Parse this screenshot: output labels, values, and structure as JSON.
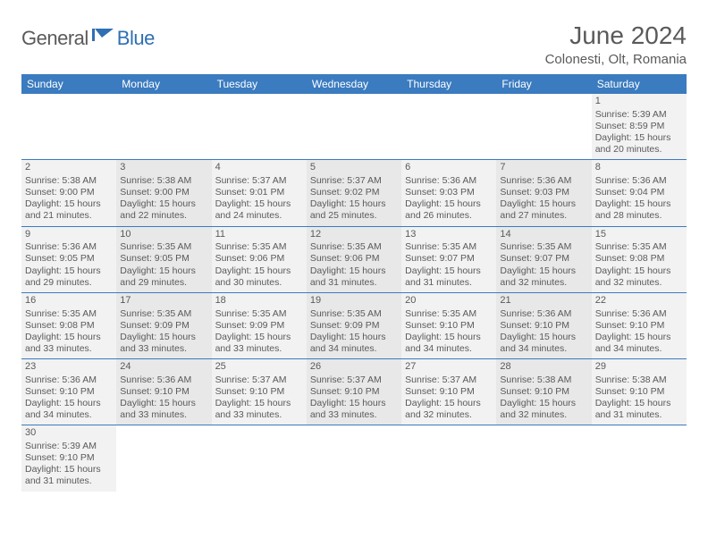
{
  "logo": {
    "text1": "General",
    "text2": "Blue",
    "color_gray": "#5a5a5a",
    "color_blue": "#2f6fb3"
  },
  "title": "June 2024",
  "location": "Colonesti, Olt, Romania",
  "weekday_bg": "#3b7bbf",
  "weekdays": [
    "Sunday",
    "Monday",
    "Tuesday",
    "Wednesday",
    "Thursday",
    "Friday",
    "Saturday"
  ],
  "alt_colors": [
    "#f2f2f2",
    "#e8e8e8"
  ],
  "border_color": "#3b7bbf",
  "weeks": [
    [
      null,
      null,
      null,
      null,
      null,
      null,
      {
        "n": "1",
        "sr": "Sunrise: 5:39 AM",
        "ss": "Sunset: 8:59 PM",
        "d1": "Daylight: 15 hours",
        "d2": "and 20 minutes."
      }
    ],
    [
      {
        "n": "2",
        "sr": "Sunrise: 5:38 AM",
        "ss": "Sunset: 9:00 PM",
        "d1": "Daylight: 15 hours",
        "d2": "and 21 minutes."
      },
      {
        "n": "3",
        "sr": "Sunrise: 5:38 AM",
        "ss": "Sunset: 9:00 PM",
        "d1": "Daylight: 15 hours",
        "d2": "and 22 minutes."
      },
      {
        "n": "4",
        "sr": "Sunrise: 5:37 AM",
        "ss": "Sunset: 9:01 PM",
        "d1": "Daylight: 15 hours",
        "d2": "and 24 minutes."
      },
      {
        "n": "5",
        "sr": "Sunrise: 5:37 AM",
        "ss": "Sunset: 9:02 PM",
        "d1": "Daylight: 15 hours",
        "d2": "and 25 minutes."
      },
      {
        "n": "6",
        "sr": "Sunrise: 5:36 AM",
        "ss": "Sunset: 9:03 PM",
        "d1": "Daylight: 15 hours",
        "d2": "and 26 minutes."
      },
      {
        "n": "7",
        "sr": "Sunrise: 5:36 AM",
        "ss": "Sunset: 9:03 PM",
        "d1": "Daylight: 15 hours",
        "d2": "and 27 minutes."
      },
      {
        "n": "8",
        "sr": "Sunrise: 5:36 AM",
        "ss": "Sunset: 9:04 PM",
        "d1": "Daylight: 15 hours",
        "d2": "and 28 minutes."
      }
    ],
    [
      {
        "n": "9",
        "sr": "Sunrise: 5:36 AM",
        "ss": "Sunset: 9:05 PM",
        "d1": "Daylight: 15 hours",
        "d2": "and 29 minutes."
      },
      {
        "n": "10",
        "sr": "Sunrise: 5:35 AM",
        "ss": "Sunset: 9:05 PM",
        "d1": "Daylight: 15 hours",
        "d2": "and 29 minutes."
      },
      {
        "n": "11",
        "sr": "Sunrise: 5:35 AM",
        "ss": "Sunset: 9:06 PM",
        "d1": "Daylight: 15 hours",
        "d2": "and 30 minutes."
      },
      {
        "n": "12",
        "sr": "Sunrise: 5:35 AM",
        "ss": "Sunset: 9:06 PM",
        "d1": "Daylight: 15 hours",
        "d2": "and 31 minutes."
      },
      {
        "n": "13",
        "sr": "Sunrise: 5:35 AM",
        "ss": "Sunset: 9:07 PM",
        "d1": "Daylight: 15 hours",
        "d2": "and 31 minutes."
      },
      {
        "n": "14",
        "sr": "Sunrise: 5:35 AM",
        "ss": "Sunset: 9:07 PM",
        "d1": "Daylight: 15 hours",
        "d2": "and 32 minutes."
      },
      {
        "n": "15",
        "sr": "Sunrise: 5:35 AM",
        "ss": "Sunset: 9:08 PM",
        "d1": "Daylight: 15 hours",
        "d2": "and 32 minutes."
      }
    ],
    [
      {
        "n": "16",
        "sr": "Sunrise: 5:35 AM",
        "ss": "Sunset: 9:08 PM",
        "d1": "Daylight: 15 hours",
        "d2": "and 33 minutes."
      },
      {
        "n": "17",
        "sr": "Sunrise: 5:35 AM",
        "ss": "Sunset: 9:09 PM",
        "d1": "Daylight: 15 hours",
        "d2": "and 33 minutes."
      },
      {
        "n": "18",
        "sr": "Sunrise: 5:35 AM",
        "ss": "Sunset: 9:09 PM",
        "d1": "Daylight: 15 hours",
        "d2": "and 33 minutes."
      },
      {
        "n": "19",
        "sr": "Sunrise: 5:35 AM",
        "ss": "Sunset: 9:09 PM",
        "d1": "Daylight: 15 hours",
        "d2": "and 34 minutes."
      },
      {
        "n": "20",
        "sr": "Sunrise: 5:35 AM",
        "ss": "Sunset: 9:10 PM",
        "d1": "Daylight: 15 hours",
        "d2": "and 34 minutes."
      },
      {
        "n": "21",
        "sr": "Sunrise: 5:36 AM",
        "ss": "Sunset: 9:10 PM",
        "d1": "Daylight: 15 hours",
        "d2": "and 34 minutes."
      },
      {
        "n": "22",
        "sr": "Sunrise: 5:36 AM",
        "ss": "Sunset: 9:10 PM",
        "d1": "Daylight: 15 hours",
        "d2": "and 34 minutes."
      }
    ],
    [
      {
        "n": "23",
        "sr": "Sunrise: 5:36 AM",
        "ss": "Sunset: 9:10 PM",
        "d1": "Daylight: 15 hours",
        "d2": "and 34 minutes."
      },
      {
        "n": "24",
        "sr": "Sunrise: 5:36 AM",
        "ss": "Sunset: 9:10 PM",
        "d1": "Daylight: 15 hours",
        "d2": "and 33 minutes."
      },
      {
        "n": "25",
        "sr": "Sunrise: 5:37 AM",
        "ss": "Sunset: 9:10 PM",
        "d1": "Daylight: 15 hours",
        "d2": "and 33 minutes."
      },
      {
        "n": "26",
        "sr": "Sunrise: 5:37 AM",
        "ss": "Sunset: 9:10 PM",
        "d1": "Daylight: 15 hours",
        "d2": "and 33 minutes."
      },
      {
        "n": "27",
        "sr": "Sunrise: 5:37 AM",
        "ss": "Sunset: 9:10 PM",
        "d1": "Daylight: 15 hours",
        "d2": "and 32 minutes."
      },
      {
        "n": "28",
        "sr": "Sunrise: 5:38 AM",
        "ss": "Sunset: 9:10 PM",
        "d1": "Daylight: 15 hours",
        "d2": "and 32 minutes."
      },
      {
        "n": "29",
        "sr": "Sunrise: 5:38 AM",
        "ss": "Sunset: 9:10 PM",
        "d1": "Daylight: 15 hours",
        "d2": "and 31 minutes."
      }
    ],
    [
      {
        "n": "30",
        "sr": "Sunrise: 5:39 AM",
        "ss": "Sunset: 9:10 PM",
        "d1": "Daylight: 15 hours",
        "d2": "and 31 minutes."
      },
      null,
      null,
      null,
      null,
      null,
      null
    ]
  ]
}
